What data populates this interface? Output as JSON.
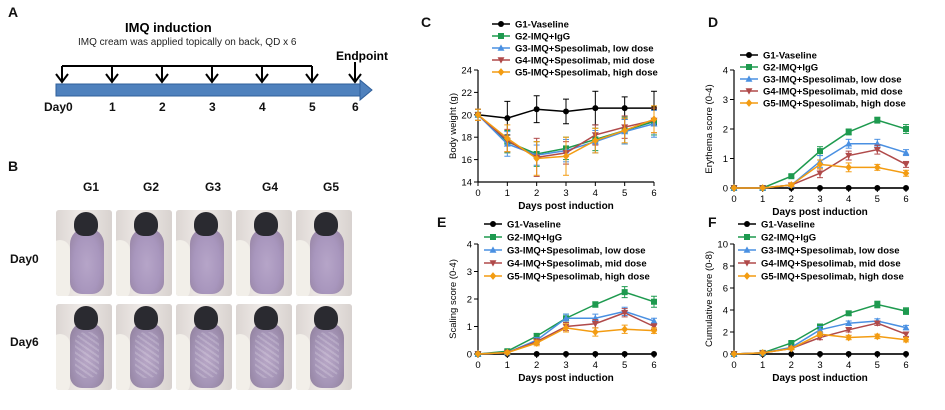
{
  "letters": {
    "a": "A",
    "b": "B",
    "c": "C",
    "d": "D",
    "e": "E",
    "f": "F"
  },
  "timeline": {
    "title": "IMQ induction",
    "subtitle": "IMQ cream was applied topically on back, QD x 6",
    "endpoint": "Endpoint",
    "days": [
      "Day0",
      "1",
      "2",
      "3",
      "4",
      "5",
      "6"
    ],
    "bar_color": "#4f81bd"
  },
  "photos": {
    "groups": [
      "G1",
      "G2",
      "G3",
      "G4",
      "G5"
    ],
    "rows": [
      "Day0",
      "Day6"
    ]
  },
  "legend_series": [
    {
      "name": "G1-Vaseline",
      "color": "#000000",
      "marker": "circle"
    },
    {
      "name": "G2-IMQ+IgG",
      "color": "#1e9a4f",
      "marker": "square"
    },
    {
      "name": "G3-IMQ+Spesolimab, low dose",
      "color": "#4a90e2",
      "marker": "triangle-up"
    },
    {
      "name": "G4-IMQ+Spesolimab, mid dose",
      "color": "#b04a4a",
      "marker": "triangle-down"
    },
    {
      "name": "G5-IMQ+Spesolimab, high dose",
      "color": "#f39c12",
      "marker": "diamond"
    }
  ],
  "chart_data": [
    {
      "id": "C",
      "type": "line",
      "xlabel": "Days post induction",
      "ylabel": "Body weight (g)",
      "xlim": [
        0,
        6
      ],
      "ylim": [
        14,
        24
      ],
      "xticks": [
        0,
        1,
        2,
        3,
        4,
        5,
        6
      ],
      "yticks": [
        14,
        16,
        18,
        20,
        22,
        24
      ],
      "x": [
        0,
        1,
        2,
        3,
        4,
        5,
        6
      ],
      "legend_position": "top-left",
      "series": [
        {
          "name": "G1-Vaseline",
          "values": [
            20.0,
            19.7,
            20.5,
            20.3,
            20.6,
            20.6,
            20.6
          ],
          "err": [
            0.5,
            1.5,
            1.2,
            1.1,
            1.5,
            1.0,
            1.5
          ]
        },
        {
          "name": "G2-IMQ+IgG",
          "values": [
            20.0,
            17.6,
            16.5,
            17.0,
            17.8,
            18.6,
            19.4
          ],
          "err": [
            0.5,
            1.0,
            1.1,
            1.0,
            1.0,
            1.2,
            1.2
          ]
        },
        {
          "name": "G3-IMQ+Spesolimab, low dose",
          "values": [
            20.0,
            17.4,
            16.4,
            16.8,
            17.6,
            18.5,
            19.2
          ],
          "err": [
            0.5,
            1.1,
            0.9,
            1.0,
            1.0,
            1.1,
            1.2
          ]
        },
        {
          "name": "G4-IMQ+Spesolimab, mid dose",
          "values": [
            20.0,
            17.7,
            16.2,
            16.6,
            18.2,
            18.9,
            19.5
          ],
          "err": [
            0.5,
            1.0,
            1.7,
            1.0,
            0.9,
            1.0,
            1.1
          ]
        },
        {
          "name": "G5-IMQ+Spesolimab, high dose",
          "values": [
            20.0,
            17.9,
            16.1,
            16.3,
            17.7,
            18.6,
            19.6
          ],
          "err": [
            0.5,
            1.2,
            1.5,
            1.7,
            1.1,
            1.1,
            1.2
          ]
        }
      ]
    },
    {
      "id": "D",
      "type": "line",
      "xlabel": "Days post induction",
      "ylabel": "Erythema score (0-4)",
      "xlim": [
        0,
        6
      ],
      "ylim": [
        0,
        4
      ],
      "xticks": [
        0,
        1,
        2,
        3,
        4,
        5,
        6
      ],
      "yticks": [
        0,
        1,
        2,
        3,
        4
      ],
      "x": [
        0,
        1,
        2,
        3,
        4,
        5,
        6
      ],
      "legend_position": "top-left",
      "series": [
        {
          "name": "G1-Vaseline",
          "values": [
            0,
            0,
            0,
            0,
            0,
            0,
            0
          ],
          "err": [
            0,
            0,
            0,
            0,
            0,
            0,
            0
          ]
        },
        {
          "name": "G2-IMQ+IgG",
          "values": [
            0,
            0,
            0.4,
            1.25,
            1.9,
            2.3,
            2.0
          ],
          "err": [
            0,
            0,
            0.05,
            0.15,
            0.1,
            0.1,
            0.15
          ]
        },
        {
          "name": "G3-IMQ+Spesolimab, low dose",
          "values": [
            0,
            0,
            0.1,
            0.9,
            1.5,
            1.5,
            1.2
          ],
          "err": [
            0,
            0,
            0.05,
            0.2,
            0.15,
            0.15,
            0.1
          ]
        },
        {
          "name": "G4-IMQ+Spesolimab, mid dose",
          "values": [
            0,
            0,
            0.1,
            0.5,
            1.1,
            1.3,
            0.8
          ],
          "err": [
            0,
            0,
            0.05,
            0.15,
            0.15,
            0.15,
            0.1
          ]
        },
        {
          "name": "G5-IMQ+Spesolimab, high dose",
          "values": [
            0,
            0,
            0.1,
            0.8,
            0.7,
            0.7,
            0.5
          ],
          "err": [
            0,
            0,
            0.05,
            0.15,
            0.15,
            0.1,
            0.1
          ]
        }
      ]
    },
    {
      "id": "E",
      "type": "line",
      "xlabel": "Days post induction",
      "ylabel": "Scaling score (0-4)",
      "xlim": [
        0,
        6
      ],
      "ylim": [
        0,
        4
      ],
      "xticks": [
        0,
        1,
        2,
        3,
        4,
        5,
        6
      ],
      "yticks": [
        0,
        1,
        2,
        3,
        4
      ],
      "x": [
        0,
        1,
        2,
        3,
        4,
        5,
        6
      ],
      "legend_position": "top-left",
      "series": [
        {
          "name": "G1-Vaseline",
          "values": [
            0,
            0,
            0,
            0,
            0,
            0,
            0
          ],
          "err": [
            0,
            0,
            0,
            0,
            0,
            0,
            0
          ]
        },
        {
          "name": "G2-IMQ+IgG",
          "values": [
            0,
            0.1,
            0.65,
            1.3,
            1.8,
            2.25,
            1.9
          ],
          "err": [
            0,
            0.05,
            0.1,
            0.15,
            0.1,
            0.2,
            0.2
          ]
        },
        {
          "name": "G3-IMQ+Spesolimab, low dose",
          "values": [
            0,
            0.05,
            0.5,
            1.3,
            1.3,
            1.55,
            1.2
          ],
          "err": [
            0,
            0.05,
            0.1,
            0.15,
            0.15,
            0.15,
            0.1
          ]
        },
        {
          "name": "G4-IMQ+Spesolimab, mid dose",
          "values": [
            0,
            0.05,
            0.45,
            1.0,
            1.1,
            1.5,
            1.0
          ],
          "err": [
            0,
            0.05,
            0.1,
            0.15,
            0.15,
            0.15,
            0.1
          ]
        },
        {
          "name": "G5-IMQ+Spesolimab, high dose",
          "values": [
            0,
            0.05,
            0.4,
            0.95,
            0.8,
            0.9,
            0.85
          ],
          "err": [
            0,
            0.05,
            0.1,
            0.15,
            0.15,
            0.15,
            0.1
          ]
        }
      ]
    },
    {
      "id": "F",
      "type": "line",
      "xlabel": "Days post induction",
      "ylabel": "Cumulative score (0-8)",
      "xlim": [
        0,
        6
      ],
      "ylim": [
        0,
        10
      ],
      "xticks": [
        0,
        1,
        2,
        3,
        4,
        5,
        6
      ],
      "yticks": [
        0,
        2,
        4,
        6,
        8,
        10
      ],
      "x": [
        0,
        1,
        2,
        3,
        4,
        5,
        6
      ],
      "legend_position": "top-left",
      "series": [
        {
          "name": "G1-Vaseline",
          "values": [
            0,
            0,
            0,
            0,
            0,
            0,
            0
          ],
          "err": [
            0,
            0,
            0,
            0,
            0,
            0,
            0
          ]
        },
        {
          "name": "G2-IMQ+IgG",
          "values": [
            0,
            0.1,
            1.0,
            2.5,
            3.7,
            4.5,
            3.9
          ],
          "err": [
            0,
            0.05,
            0.1,
            0.2,
            0.2,
            0.3,
            0.3
          ]
        },
        {
          "name": "G3-IMQ+Spesolimab, low dose",
          "values": [
            0,
            0.1,
            0.6,
            2.2,
            2.8,
            3.0,
            2.4
          ],
          "err": [
            0,
            0.05,
            0.1,
            0.3,
            0.2,
            0.2,
            0.2
          ]
        },
        {
          "name": "G4-IMQ+Spesolimab, mid dose",
          "values": [
            0,
            0.1,
            0.5,
            1.5,
            2.2,
            2.8,
            1.8
          ],
          "err": [
            0,
            0.05,
            0.1,
            0.2,
            0.2,
            0.2,
            0.2
          ]
        },
        {
          "name": "G5-IMQ+Spesolimab, high dose",
          "values": [
            0,
            0.1,
            0.5,
            1.8,
            1.5,
            1.6,
            1.3
          ],
          "err": [
            0,
            0.05,
            0.1,
            0.2,
            0.2,
            0.2,
            0.2
          ]
        }
      ]
    }
  ]
}
